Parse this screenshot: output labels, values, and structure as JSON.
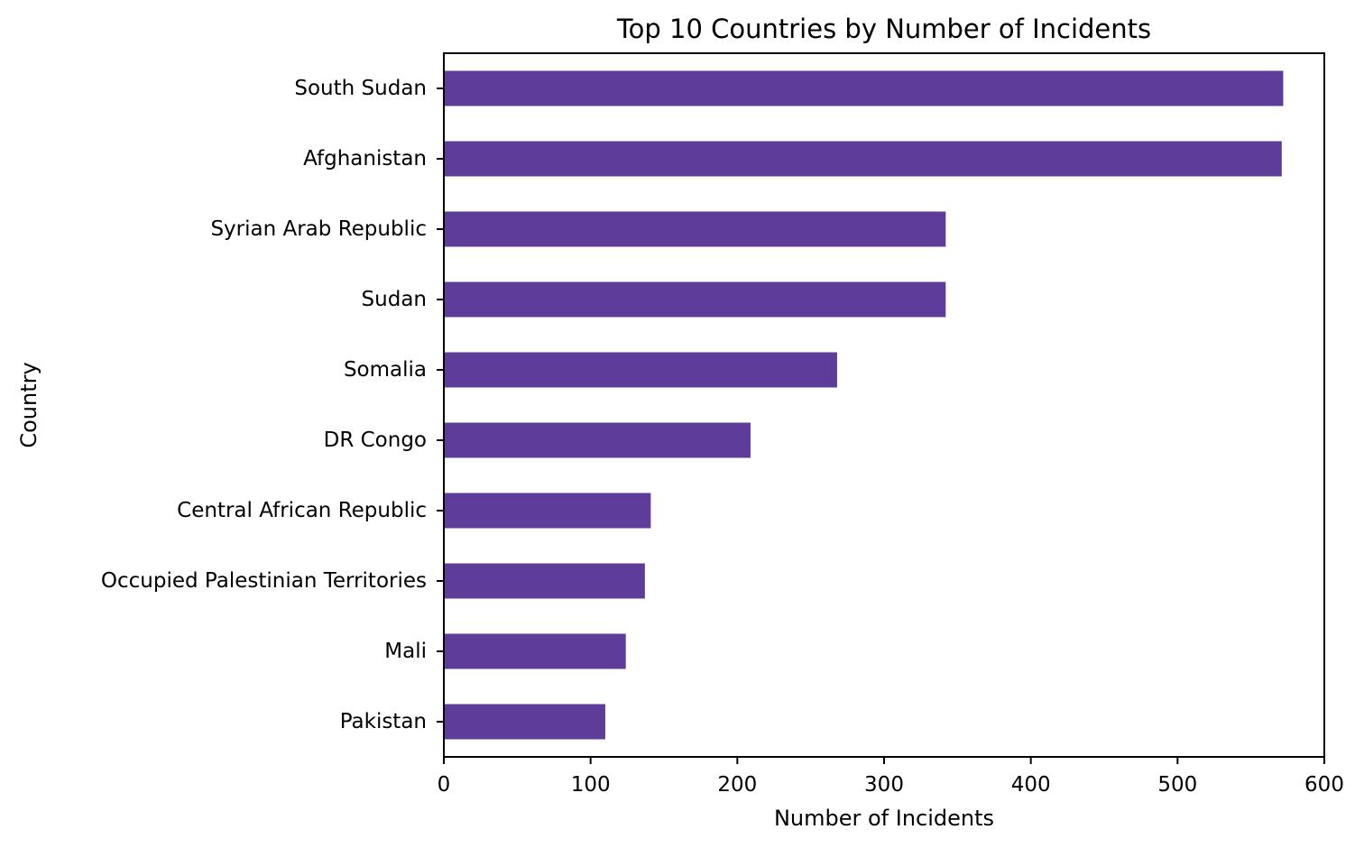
{
  "chart_data": {
    "type": "bar",
    "orientation": "horizontal",
    "title": "Top 10 Countries by Number of Incidents",
    "xlabel": "Number of Incidents",
    "ylabel": "Country",
    "categories": [
      "South Sudan",
      "Afghanistan",
      "Syrian Arab Republic",
      "Sudan",
      "Somalia",
      "DR Congo",
      "Central African Republic",
      "Occupied Palestinian Territories",
      "Mali",
      "Pakistan"
    ],
    "values": [
      572,
      571,
      342,
      342,
      268,
      209,
      141,
      137,
      124,
      110
    ],
    "xlim": [
      0,
      600
    ],
    "xticks": [
      0,
      100,
      200,
      300,
      400,
      500,
      600
    ],
    "grid": false,
    "bar_color": "#5e3c99"
  }
}
